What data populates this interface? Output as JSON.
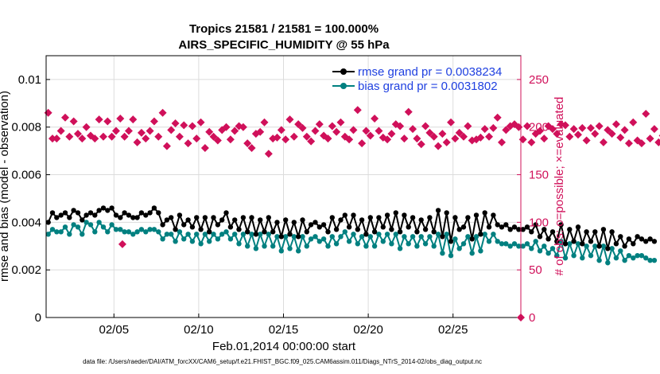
{
  "colors": {
    "rmse": "#000000",
    "bias": "#008080",
    "obs": "#d0105a",
    "legend_text": "#1f40e0",
    "axis": "#000000"
  },
  "chart_data": {
    "type": "line",
    "title_line1": "Tropics 21581 / 21581 = 100.000%",
    "title_line2": "AIRS_SPECIFIC_HUMIDITY @ 55 hPa",
    "xlabel": "Feb.01,2014 00:00:00 start",
    "ylabel_left": "rmse and bias (model - observation)",
    "ylabel_right": "# of obs: o=possible; ×=evaluated",
    "footer": "data file: /Users/raeder/DAI/ATM_forcXX/CAM6_setup/f.e21.FHIST_BGC.f09_025.CAM6assim.011/Diags_NTrS_2014-02/obs_diag_output.nc",
    "xlim": [
      1.0,
      29.0
    ],
    "ylim_left": [
      0,
      0.011
    ],
    "ylim_right": [
      0,
      275
    ],
    "x_ticks": [
      5,
      10,
      15,
      20,
      25
    ],
    "x_tick_labels": [
      "02/05",
      "02/10",
      "02/15",
      "02/20",
      "02/25"
    ],
    "y_left_ticks": [
      0,
      0.002,
      0.004,
      0.006,
      0.008,
      0.01
    ],
    "y_left_tick_labels": [
      "0",
      "0.002",
      "0.004",
      "0.006",
      "0.008",
      "0.01"
    ],
    "y_right_ticks": [
      0,
      50,
      100,
      150,
      200,
      250
    ],
    "y_right_tick_labels": [
      "0",
      "50",
      "100",
      "150",
      "200",
      "250"
    ],
    "legend": {
      "placement": "top-right",
      "rmse_label": "rmse grand pr = 0.0038234",
      "bias_label": "bias grand pr = 0.0031802"
    },
    "series": [
      {
        "name": "rmse",
        "start_day": 1.125,
        "step_days": 0.25,
        "values": [
          0.004,
          0.0044,
          0.0042,
          0.0043,
          0.0044,
          0.0042,
          0.0045,
          0.0044,
          0.0041,
          0.0043,
          0.0044,
          0.0043,
          0.0045,
          0.0046,
          0.0045,
          0.0046,
          0.0043,
          0.0042,
          0.0044,
          0.0043,
          0.0042,
          0.0042,
          0.0044,
          0.0043,
          0.0044,
          0.0046,
          0.0044,
          0.0039,
          0.0041,
          0.0042,
          0.0037,
          0.0043,
          0.0039,
          0.0041,
          0.0038,
          0.0042,
          0.0037,
          0.0042,
          0.0036,
          0.0042,
          0.0039,
          0.0041,
          0.0044,
          0.0038,
          0.0041,
          0.0037,
          0.0042,
          0.0036,
          0.0042,
          0.0035,
          0.0041,
          0.0036,
          0.0042,
          0.0036,
          0.004,
          0.0034,
          0.0041,
          0.0035,
          0.004,
          0.0034,
          0.0041,
          0.0036,
          0.0039,
          0.004,
          0.0038,
          0.0039,
          0.0036,
          0.0042,
          0.0037,
          0.0041,
          0.0043,
          0.0038,
          0.0043,
          0.0037,
          0.0041,
          0.0035,
          0.0042,
          0.0036,
          0.0042,
          0.0038,
          0.0043,
          0.0037,
          0.0044,
          0.0036,
          0.0043,
          0.0038,
          0.0042,
          0.0036,
          0.0041,
          0.0037,
          0.0042,
          0.0036,
          0.0045,
          0.0034,
          0.0044,
          0.0032,
          0.0042,
          0.0037,
          0.0038,
          0.0042,
          0.0033,
          0.0043,
          0.0035,
          0.0044,
          0.0038,
          0.0043,
          0.0039,
          0.0038,
          0.0039,
          0.0037,
          0.0038,
          0.0037,
          0.0037,
          0.0038,
          0.0036,
          0.0039,
          0.0034,
          0.0037,
          0.0033,
          0.0036,
          0.0032,
          0.0039,
          0.0031,
          0.0037,
          0.0032,
          0.0038,
          0.0031,
          0.0036,
          0.0032,
          0.0036,
          0.003,
          0.0037,
          0.0029,
          0.0036,
          0.0031,
          0.0034,
          0.003,
          0.0033,
          0.0031,
          0.0034,
          0.0033,
          0.0032,
          0.0033,
          0.0032
        ]
      },
      {
        "name": "bias",
        "start_day": 1.125,
        "step_days": 0.25,
        "values": [
          0.0035,
          0.0037,
          0.0036,
          0.0036,
          0.0038,
          0.0035,
          0.0039,
          0.0038,
          0.0035,
          0.004,
          0.0039,
          0.0036,
          0.004,
          0.0038,
          0.0036,
          0.0039,
          0.0037,
          0.0037,
          0.0036,
          0.0036,
          0.0035,
          0.0036,
          0.0037,
          0.0036,
          0.0037,
          0.0037,
          0.0036,
          0.0033,
          0.0035,
          0.0035,
          0.0032,
          0.0036,
          0.0033,
          0.0035,
          0.0032,
          0.0035,
          0.0031,
          0.0035,
          0.0032,
          0.0035,
          0.0033,
          0.0035,
          0.0036,
          0.0033,
          0.0035,
          0.0031,
          0.0035,
          0.003,
          0.0035,
          0.0029,
          0.0035,
          0.003,
          0.0035,
          0.003,
          0.0034,
          0.0028,
          0.0034,
          0.0029,
          0.0034,
          0.0028,
          0.0034,
          0.003,
          0.0033,
          0.0034,
          0.0032,
          0.0033,
          0.003,
          0.0034,
          0.0031,
          0.0034,
          0.0036,
          0.0032,
          0.0035,
          0.0031,
          0.0034,
          0.003,
          0.0034,
          0.003,
          0.0035,
          0.0032,
          0.0035,
          0.0031,
          0.0035,
          0.0029,
          0.0034,
          0.0031,
          0.0034,
          0.003,
          0.0034,
          0.0031,
          0.0034,
          0.003,
          0.0035,
          0.0027,
          0.0035,
          0.0026,
          0.0033,
          0.0029,
          0.0031,
          0.0034,
          0.0027,
          0.0034,
          0.0028,
          0.0035,
          0.0032,
          0.0035,
          0.0032,
          0.0031,
          0.0031,
          0.003,
          0.0031,
          0.003,
          0.003,
          0.0031,
          0.0029,
          0.0032,
          0.0028,
          0.003,
          0.0027,
          0.0029,
          0.0026,
          0.0032,
          0.0025,
          0.0031,
          0.0026,
          0.0031,
          0.0025,
          0.003,
          0.0026,
          0.003,
          0.0024,
          0.003,
          0.0023,
          0.0029,
          0.0025,
          0.0028,
          0.0024,
          0.0026,
          0.0025,
          0.0026,
          0.0026,
          0.0025,
          0.0024,
          0.0024
        ]
      },
      {
        "name": "obs evaluated",
        "axis": "right",
        "start_day": 1.125,
        "step_days": 0.25,
        "values": [
          215,
          188,
          188,
          196,
          210,
          190,
          206,
          193,
          188,
          200,
          191,
          188,
          208,
          190,
          206,
          190,
          196,
          209,
          190,
          196,
          208,
          184,
          194,
          188,
          196,
          206,
          190,
          215,
          180,
          197,
          204,
          190,
          202,
          183,
          201,
          188,
          205,
          178,
          195,
          190,
          186,
          197,
          200,
          187,
          196,
          201,
          200,
          183,
          178,
          193,
          195,
          205,
          172,
          188,
          189,
          197,
          187,
          208,
          190,
          203,
          199,
          190,
          185,
          196,
          203,
          191,
          188,
          201,
          195,
          205,
          190,
          187,
          197,
          218,
          183,
          196,
          191,
          209,
          196,
          189,
          187,
          193,
          203,
          201,
          188,
          216,
          198,
          188,
          182,
          201,
          194,
          190,
          180,
          193,
          184,
          205,
          188,
          194,
          190,
          201,
          186,
          187,
          189,
          198,
          190,
          199,
          210,
          184,
          197,
          201,
          203,
          200,
          187,
          201,
          184,
          193,
          196,
          188,
          201,
          198,
          193,
          203,
          202,
          190,
          198,
          192,
          199,
          186,
          199,
          193,
          201,
          184,
          197,
          193,
          203,
          189,
          197,
          183,
          205,
          186,
          183,
          214,
          188,
          198,
          184,
          191
        ]
      },
      {
        "name": "obs evaluated outliers",
        "axis": "right",
        "points": [
          [
            5.5,
            77
          ],
          [
            29.0,
            0
          ]
        ]
      }
    ]
  }
}
